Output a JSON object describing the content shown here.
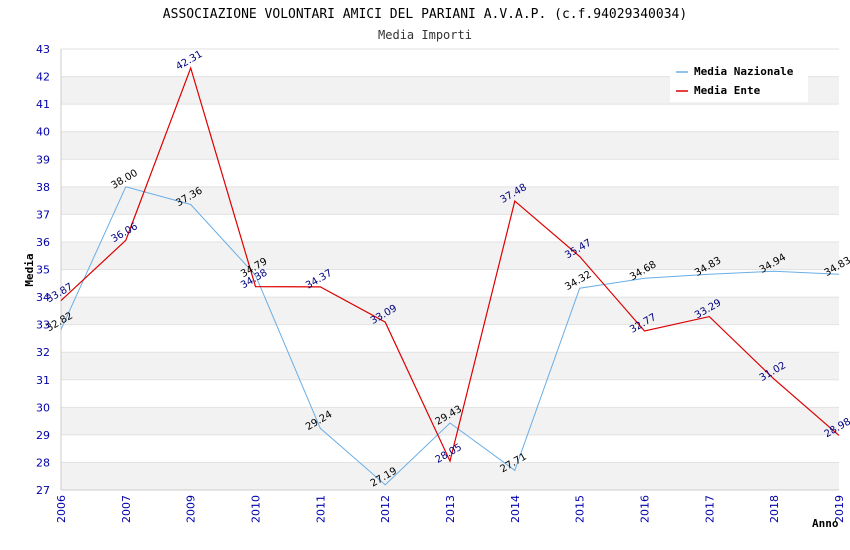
{
  "title": "ASSOCIAZIONE VOLONTARI AMICI DEL PARIANI A.V.A.P. (c.f.94029340034)",
  "subtitle": "Media Importi",
  "chart_data": {
    "type": "line",
    "title": "ASSOCIAZIONE VOLONTARI AMICI DEL PARIANI A.V.A.P. (c.f.94029340034)",
    "subtitle": "Media Importi",
    "xlabel": "Anno",
    "ylabel": "Media",
    "categories": [
      "2006",
      "2007",
      "2009",
      "2010",
      "2011",
      "2012",
      "2013",
      "2014",
      "2015",
      "2016",
      "2017",
      "2018",
      "2019"
    ],
    "ylim": [
      27,
      43
    ],
    "yticks": [
      27,
      28,
      29,
      30,
      31,
      32,
      33,
      34,
      35,
      36,
      37,
      38,
      39,
      40,
      41,
      42,
      43
    ],
    "grid": true,
    "legend_position": "top-right",
    "series": [
      {
        "name": "Media Nazionale",
        "color": "#6aaee6",
        "values": [
          32.82,
          38.0,
          37.36,
          34.79,
          29.24,
          27.19,
          29.43,
          27.71,
          34.32,
          34.68,
          34.83,
          34.94,
          34.83
        ],
        "labels": [
          "32.82",
          "38.00",
          "37.36",
          "34.79",
          "29.24",
          "27.19",
          "29.43",
          "27.71",
          "34.32",
          "34.68",
          "34.83",
          "34.94",
          "34.83"
        ]
      },
      {
        "name": "Media Ente",
        "color": "#dd0000",
        "values": [
          33.87,
          36.06,
          42.31,
          34.38,
          34.37,
          33.09,
          28.05,
          37.48,
          35.47,
          32.77,
          33.29,
          31.02,
          28.98
        ],
        "labels": [
          "33.87",
          "36.06",
          "42.31",
          "34.38",
          "34.37",
          "33.09",
          "28.05",
          "37.48",
          "35.47",
          "32.77",
          "33.29",
          "31.02",
          "28.98"
        ]
      }
    ]
  }
}
